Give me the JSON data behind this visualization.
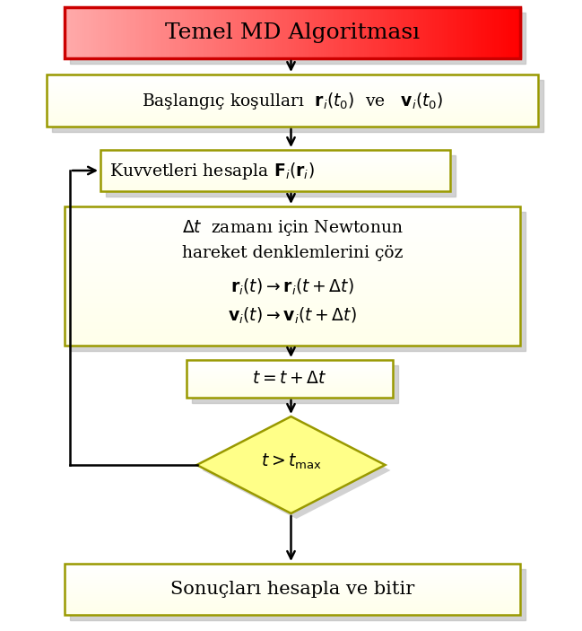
{
  "title": "Temel MD Algoritması",
  "bg_color": "#ffffff",
  "box_fill_yellow_top": "#ffff80",
  "box_fill_yellow_bot": "#ffffc0",
  "box_border": "#999900",
  "shadow_color": "#bbbbbb",
  "title_fill_left": "#ffaaaa",
  "title_fill_right": "#ff0000",
  "title_border": "#cc0000",
  "arrow_color": "#000000",
  "text_color": "#000000",
  "fig_w": 6.49,
  "fig_h": 7.03,
  "dpi": 100
}
